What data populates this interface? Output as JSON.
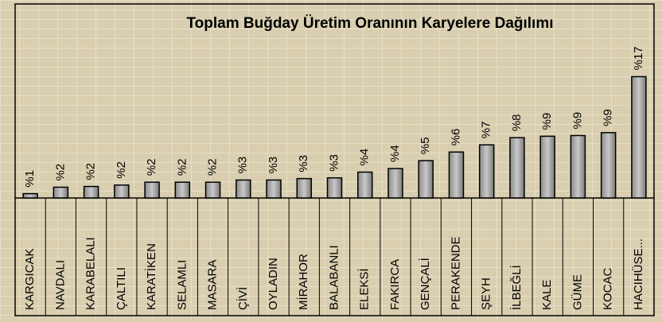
{
  "chart_data": {
    "type": "bar",
    "title": "Toplam Buğday Üretim Oranının Karyelere Dağılımı",
    "categories": [
      "KARGICAK",
      "NAVDALI",
      "KARABELALI",
      "ÇALTILI",
      "KARATİKEN",
      "SELAMLI",
      "MASARA",
      "ÇİVİ",
      "OYLADIN",
      "MİRAHOR",
      "BALABANLI",
      "ELEKSİ",
      "FAKIRCA",
      "GENÇALİ",
      "PERAKENDE",
      "ŞEYH",
      "İLBEĞLİ",
      "KALE",
      "GÜME",
      "KOCAC",
      "HACIHÜSE..."
    ],
    "values": [
      0.6,
      1.5,
      1.6,
      1.8,
      2.2,
      2.2,
      2.2,
      2.5,
      2.5,
      2.7,
      2.8,
      3.6,
      4.1,
      5.2,
      6.4,
      7.4,
      8.4,
      8.6,
      8.7,
      9.1,
      16.9
    ],
    "value_labels": [
      "%1",
      "%2",
      "%2",
      "%2",
      "%2",
      "%2",
      "%2",
      "%3",
      "%3",
      "%3",
      "%3",
      "%4",
      "%4",
      "%5",
      "%6",
      "%7",
      "%8",
      "%9",
      "%9",
      "%9",
      "%17"
    ],
    "color": "#a9a9a9",
    "ylim": [
      0,
      17.5
    ]
  }
}
